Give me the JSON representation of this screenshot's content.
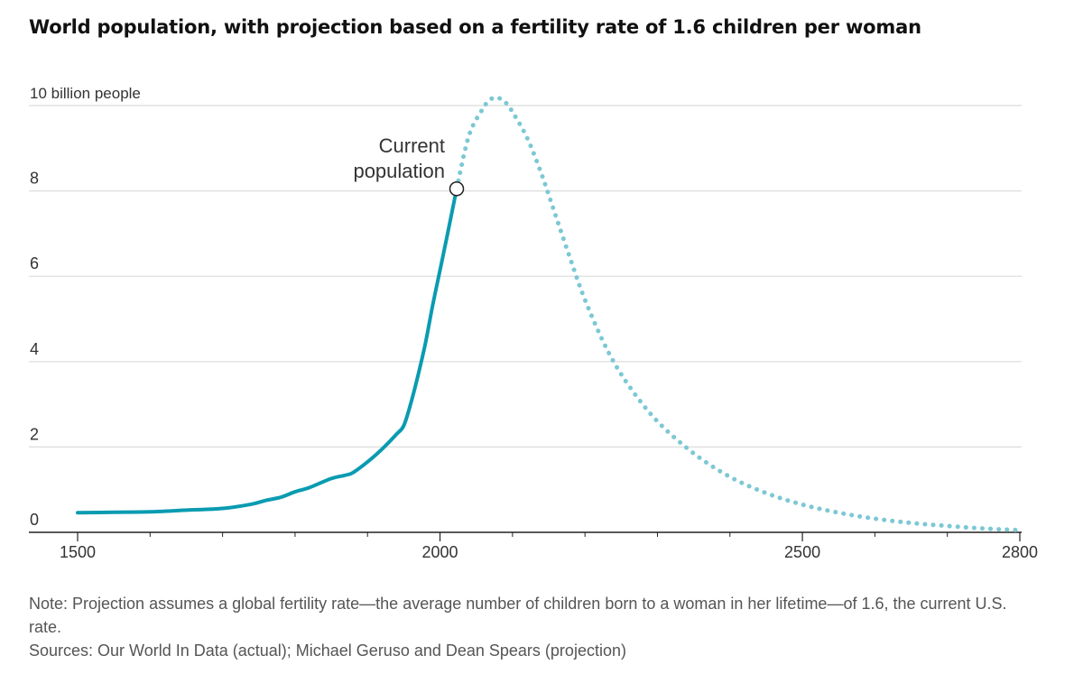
{
  "title": "World population, with projection based on a fertility rate of 1.6 children per woman",
  "colors": {
    "actual": "#0a9bb1",
    "projection": "#7cc8d4",
    "grid": "#dcdcdc",
    "axis": "#222222",
    "text": "#333333"
  },
  "chart_data": {
    "type": "line",
    "title": "World population, with projection based on a fertility rate of 1.6 children per woman",
    "xlabel": "",
    "ylabel": "10 billion people",
    "xlim": [
      1500,
      2800
    ],
    "ylim": [
      0,
      10
    ],
    "x_ticks": [
      1500,
      2000,
      2500,
      2800
    ],
    "x_minor_ticks": [
      1600,
      1700,
      1800,
      1900,
      2100,
      2200,
      2300,
      2400,
      2600,
      2700
    ],
    "y_ticks": [
      {
        "value": 0,
        "label": "0"
      },
      {
        "value": 2,
        "label": "2"
      },
      {
        "value": 4,
        "label": "4"
      },
      {
        "value": 6,
        "label": "6"
      },
      {
        "value": 8,
        "label": "8"
      },
      {
        "value": 10,
        "label": "10 billion people"
      }
    ],
    "grid": true,
    "series": [
      {
        "name": "Actual",
        "style": "solid",
        "x": [
          1500,
          1550,
          1600,
          1650,
          1700,
          1740,
          1760,
          1780,
          1800,
          1820,
          1850,
          1870,
          1880,
          1900,
          1920,
          1940,
          1950,
          1960,
          1970,
          1980,
          1990,
          2000,
          2010,
          2023
        ],
        "y": [
          0.46,
          0.47,
          0.48,
          0.52,
          0.56,
          0.66,
          0.75,
          0.82,
          0.95,
          1.05,
          1.26,
          1.34,
          1.4,
          1.65,
          1.95,
          2.3,
          2.5,
          3.04,
          3.7,
          4.44,
          5.33,
          6.14,
          6.96,
          8.05
        ]
      },
      {
        "name": "Projection",
        "style": "dotted",
        "x": [
          2023,
          2040,
          2060,
          2070,
          2080,
          2090,
          2100,
          2120,
          2140,
          2160,
          2180,
          2200,
          2230,
          2260,
          2300,
          2350,
          2400,
          2450,
          2500,
          2550,
          2600,
          2650,
          2700,
          2750,
          2800
        ],
        "y": [
          8.05,
          9.3,
          9.95,
          10.15,
          10.18,
          10.08,
          9.85,
          9.25,
          8.4,
          7.4,
          6.4,
          5.45,
          4.3,
          3.45,
          2.6,
          1.85,
          1.3,
          0.92,
          0.65,
          0.46,
          0.32,
          0.22,
          0.15,
          0.09,
          0.05
        ]
      }
    ],
    "annotations": [
      {
        "x": 2023,
        "y": 8.05,
        "lines": [
          "Current",
          "population"
        ]
      }
    ]
  },
  "note": "Note: Projection assumes a global fertility rate—the average number of children born to a woman in her lifetime—of 1.6, the current U.S. rate.",
  "sources": "Sources: Our World In Data (actual); Michael Geruso and Dean Spears (projection)"
}
